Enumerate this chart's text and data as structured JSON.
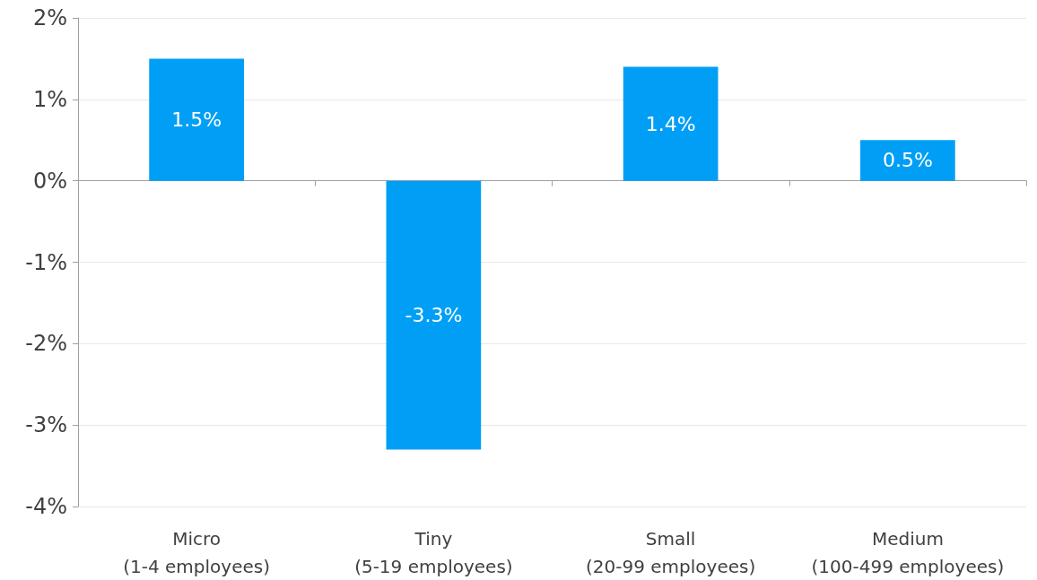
{
  "chart_data": {
    "type": "bar",
    "categories": [
      "Micro\n(1-4 employees)",
      "Tiny\n(5-19 employees)",
      "Small\n(20-99 employees)",
      "Medium\n(100-499 employees)"
    ],
    "values": [
      1.5,
      -3.3,
      1.4,
      0.5
    ],
    "value_labels": [
      "1.5%",
      "-3.3%",
      "1.4%",
      "0.5%"
    ],
    "color": "#009ff5",
    "ylim": [
      -4,
      2
    ],
    "yticks": [
      {
        "value": -4,
        "label": "-4%"
      },
      {
        "value": -3,
        "label": "-3%"
      },
      {
        "value": -2,
        "label": "-2%"
      },
      {
        "value": -1,
        "label": "-1%"
      },
      {
        "value": 0,
        "label": "0%"
      },
      {
        "value": 1,
        "label": "1%"
      },
      {
        "value": 2,
        "label": "2%"
      }
    ],
    "grid": "y"
  }
}
